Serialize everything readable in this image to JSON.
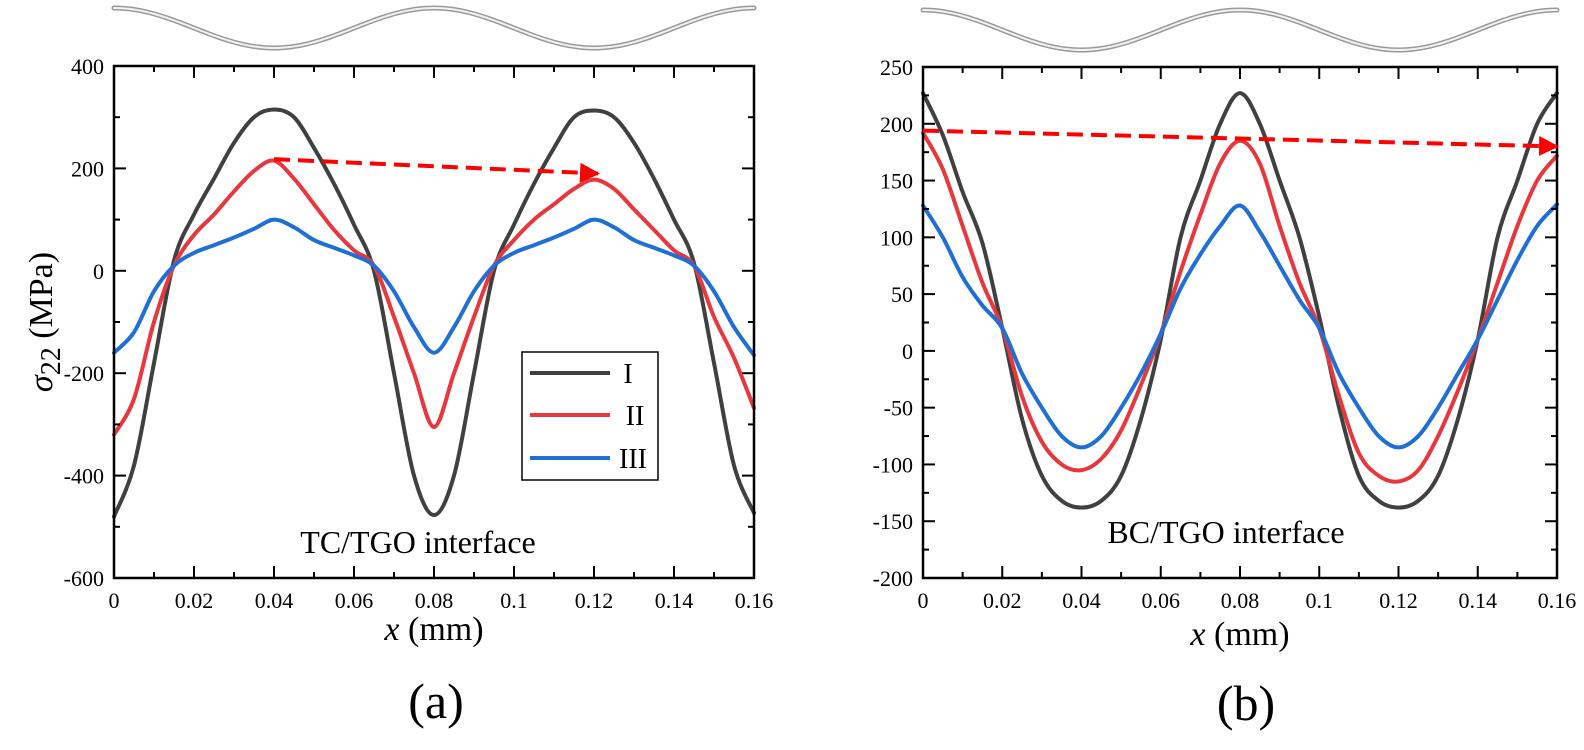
{
  "chart_data": [
    {
      "type": "line",
      "panel_label": "(a)",
      "annotation": "TC/TGO interface",
      "xlabel_var": "x",
      "xlabel_unit": " (mm)",
      "ylabel_var": "σ",
      "ylabel_sub": "22",
      "ylabel_unit": " (MPa)",
      "xlim": [
        0,
        0.16
      ],
      "ylim": [
        -600,
        400
      ],
      "xticks": [
        0,
        0.02,
        0.04,
        0.06,
        0.08,
        0.1,
        0.12,
        0.14,
        0.16
      ],
      "xtick_labels": [
        "0",
        "0.02",
        "0.04",
        "0.06",
        "0.08",
        "0.1",
        "0.12",
        "0.14",
        "0.16"
      ],
      "yticks": [
        400,
        200,
        0,
        -200,
        -400,
        -600
      ],
      "ytick_labels": [
        "400",
        "200",
        "0",
        "-200",
        "-400",
        "-600"
      ],
      "x_minor_step": 0.01,
      "y_minor_step": 100,
      "grid": false,
      "legend": {
        "placement": "center-right",
        "entries": [
          "I",
          "II",
          "III"
        ]
      },
      "x": [
        0,
        0.005,
        0.01,
        0.015,
        0.02,
        0.025,
        0.03,
        0.035,
        0.04,
        0.045,
        0.05,
        0.055,
        0.06,
        0.065,
        0.07,
        0.075,
        0.08,
        0.085,
        0.09,
        0.095,
        0.1,
        0.105,
        0.11,
        0.115,
        0.12,
        0.125,
        0.13,
        0.135,
        0.14,
        0.145,
        0.15,
        0.155,
        0.16
      ],
      "series": [
        {
          "name": "I",
          "color": "#404040",
          "values": [
            -480,
            -380,
            -180,
            20,
            110,
            180,
            250,
            300,
            315,
            300,
            240,
            170,
            90,
            0,
            -200,
            -400,
            -477,
            -400,
            -200,
            0,
            90,
            170,
            240,
            300,
            313,
            300,
            250,
            180,
            100,
            15,
            -180,
            -380,
            -473
          ]
        },
        {
          "name": "II",
          "color": "#e8383d",
          "values": [
            -320,
            -250,
            -100,
            10,
            70,
            110,
            155,
            195,
            215,
            180,
            130,
            80,
            40,
            10,
            -90,
            -200,
            -305,
            -200,
            -90,
            10,
            60,
            100,
            130,
            160,
            178,
            160,
            120,
            80,
            40,
            10,
            -90,
            -170,
            -268
          ]
        },
        {
          "name": "III",
          "color": "#1f6fd6",
          "values": [
            -160,
            -120,
            -40,
            10,
            35,
            50,
            65,
            82,
            100,
            85,
            60,
            45,
            30,
            10,
            -40,
            -110,
            -160,
            -110,
            -40,
            10,
            35,
            50,
            65,
            82,
            100,
            85,
            60,
            45,
            30,
            10,
            -40,
            -110,
            -165
          ]
        }
      ],
      "arrow": {
        "from": [
          0.04,
          218
        ],
        "to": [
          0.121,
          190
        ],
        "color": "#ff0000",
        "style": "dashed"
      }
    },
    {
      "type": "line",
      "panel_label": "(b)",
      "annotation": "BC/TGO interface",
      "xlabel_var": "x",
      "xlabel_unit": " (mm)",
      "xlim": [
        0,
        0.16
      ],
      "ylim": [
        -200,
        250
      ],
      "xticks": [
        0,
        0.02,
        0.04,
        0.06,
        0.08,
        0.1,
        0.12,
        0.14,
        0.16
      ],
      "xtick_labels": [
        "0",
        "0.02",
        "0.04",
        "0.06",
        "0.08",
        "0.1",
        "0.12",
        "0.14",
        "0.16"
      ],
      "yticks": [
        250,
        200,
        150,
        100,
        50,
        0,
        -50,
        -100,
        -150,
        -200
      ],
      "ytick_labels": [
        "250",
        "200",
        "150",
        "100",
        "50",
        "0",
        "-50",
        "-100",
        "-150",
        "-200"
      ],
      "x_minor_step": 0.01,
      "y_minor_step": 25,
      "grid": false,
      "x": [
        0,
        0.005,
        0.01,
        0.015,
        0.02,
        0.025,
        0.03,
        0.035,
        0.04,
        0.045,
        0.05,
        0.055,
        0.06,
        0.065,
        0.07,
        0.075,
        0.08,
        0.085,
        0.09,
        0.095,
        0.1,
        0.105,
        0.11,
        0.115,
        0.12,
        0.125,
        0.13,
        0.135,
        0.14,
        0.145,
        0.15,
        0.155,
        0.16
      ],
      "series": [
        {
          "name": "I",
          "color": "#404040",
          "values": [
            227,
            190,
            140,
            95,
            20,
            -60,
            -110,
            -132,
            -138,
            -132,
            -110,
            -60,
            10,
            100,
            150,
            200,
            227,
            200,
            150,
            100,
            30,
            -50,
            -110,
            -132,
            -138,
            -132,
            -110,
            -60,
            10,
            100,
            150,
            200,
            227
          ]
        },
        {
          "name": "II",
          "color": "#e8383d",
          "values": [
            192,
            160,
            110,
            60,
            20,
            -40,
            -80,
            -100,
            -105,
            -95,
            -70,
            -30,
            15,
            70,
            120,
            165,
            185,
            165,
            110,
            60,
            20,
            -40,
            -90,
            -110,
            -115,
            -105,
            -75,
            -35,
            10,
            60,
            110,
            150,
            172
          ]
        },
        {
          "name": "III",
          "color": "#1f6fd6",
          "values": [
            128,
            100,
            65,
            40,
            20,
            -20,
            -50,
            -75,
            -85,
            -75,
            -50,
            -20,
            15,
            55,
            85,
            110,
            128,
            105,
            75,
            45,
            20,
            -20,
            -50,
            -75,
            -85,
            -75,
            -50,
            -20,
            10,
            45,
            80,
            110,
            129
          ]
        }
      ],
      "arrow": {
        "from": [
          0,
          194
        ],
        "to": [
          0.16,
          180
        ],
        "color": "#ff0000",
        "style": "dashed"
      }
    }
  ],
  "decoration": {
    "name": "interface-profile-wave",
    "color": "#b8b8b8"
  }
}
